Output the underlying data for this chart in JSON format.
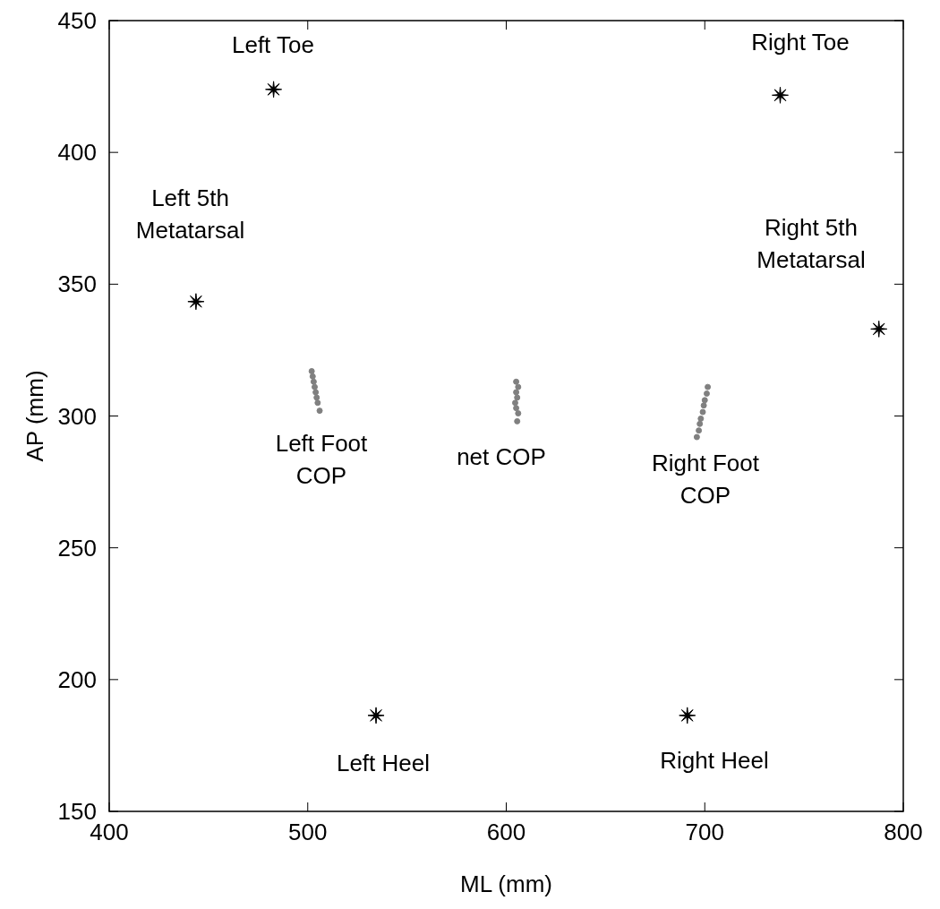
{
  "chart_data": {
    "type": "scatter",
    "xlabel": "ML (mm)",
    "ylabel": "AP (mm)",
    "xlim": [
      400,
      800
    ],
    "xticks": [
      400,
      500,
      600,
      700,
      800
    ],
    "ylim": [
      150,
      450
    ],
    "yticks": [
      150,
      200,
      250,
      300,
      350,
      400,
      450
    ],
    "series": [
      {
        "color": "#000000",
        "marker": "star",
        "x": [
          482.8,
          443.7,
          738,
          787.7,
          534.4,
          691.2
        ],
        "values": [
          423.9,
          343.4,
          421.7,
          333,
          186.4,
          186.4
        ]
      },
      {
        "color": "#808080",
        "marker": "circle",
        "x": [
          502,
          502.5,
          503,
          503.5,
          504,
          504.5,
          505,
          506
        ],
        "values": [
          317,
          315,
          313,
          311,
          309,
          307,
          305,
          302
        ]
      },
      {
        "color": "#808080",
        "marker": "circle",
        "x": [
          605,
          606,
          605,
          605.5,
          604.5,
          605,
          606,
          605.5
        ],
        "values": [
          313,
          311,
          309,
          307,
          305,
          303,
          301,
          298
        ]
      },
      {
        "color": "#808080",
        "marker": "circle",
        "x": [
          701.5,
          701,
          700,
          699.5,
          699,
          698,
          697.5,
          697,
          696
        ],
        "values": [
          311,
          308.5,
          306,
          304,
          301.5,
          299,
          297,
          294.5,
          292
        ]
      }
    ],
    "annotations": [
      "Left Toe",
      "Right Toe",
      "Left 5th\nMetatarsal",
      "Right 5th\nMetatarsal",
      "Left Foot\nCOP",
      "net COP",
      "Right Foot\nCOP",
      "Left Heel",
      "Right Heel"
    ]
  }
}
